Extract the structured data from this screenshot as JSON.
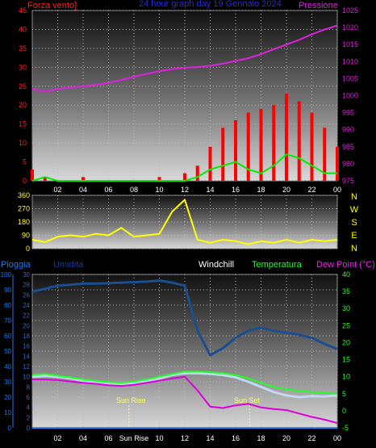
{
  "header": {
    "left_title": "Forza vento]",
    "center_title": "24 hour graph day  19 Gennaio 2024",
    "right_title": "Pressione"
  },
  "bottom_header": {
    "rain_label": "Pioggia",
    "humidity_label": "Umidita",
    "windchill_label": "Windchill",
    "temperature_label": "Temperatura",
    "dewpoint_label": "Dew Point (°C)"
  },
  "hour_ticks": [
    "02",
    "04",
    "06",
    "08",
    "10",
    "12",
    "14",
    "16",
    "18",
    "20",
    "22",
    "00"
  ],
  "hour_ticks_bottom": [
    "02",
    "04",
    "06",
    "Sun Rise",
    "10",
    "12",
    "14",
    "16",
    "18",
    "20",
    "22",
    "00"
  ],
  "annotations": {
    "sun_rise": "Sun Rise",
    "sun_set": "Sun Set"
  },
  "colors": {
    "wind": "#ff0000",
    "gust": "#00ee00",
    "pressure": "#dd22dd",
    "direction": "#ffff00",
    "humidity": "#1a4f8f",
    "windchill": "#c0d8f0",
    "temperature": "#22ff22",
    "dewpoint": "#dd00dd",
    "rain": "#2288ff"
  },
  "chart_data": [
    {
      "type": "line",
      "title": "24 hour graph day  19 Gennaio 2024",
      "ylabel_left": "Forza vento]",
      "ylabel_right": "Pressione",
      "ylim_left": [
        0,
        45
      ],
      "yticks_left": [
        0,
        5,
        10,
        15,
        20,
        25,
        30,
        35,
        40,
        45
      ],
      "ylim_right": [
        975,
        1025
      ],
      "yticks_right": [
        975,
        980,
        985,
        990,
        995,
        1000,
        1005,
        1010,
        1015,
        1020,
        1025
      ],
      "x_hours": [
        0,
        1,
        2,
        3,
        4,
        5,
        6,
        7,
        8,
        9,
        10,
        11,
        12,
        13,
        14,
        15,
        16,
        17,
        18,
        19,
        20,
        21,
        22,
        23,
        24
      ],
      "series": [
        {
          "name": "Pressione",
          "axis": "right",
          "values": [
            1002.0,
            1001.2,
            1002.0,
            1002.4,
            1002.8,
            1003.2,
            1003.8,
            1004.6,
            1005.6,
            1006.4,
            1007.2,
            1007.8,
            1008.2,
            1008.4,
            1008.8,
            1009.4,
            1010.2,
            1011.0,
            1012.2,
            1013.6,
            1015.0,
            1016.4,
            1018.0,
            1019.4,
            1020.6
          ]
        },
        {
          "name": "wind",
          "axis": "left",
          "values": [
            3,
            1,
            0,
            0,
            1,
            0,
            0,
            0,
            0,
            0,
            1,
            0,
            2,
            4,
            9,
            14,
            16,
            18,
            19,
            20,
            23,
            21,
            18,
            14,
            9
          ]
        },
        {
          "name": "gust",
          "axis": "left",
          "values": [
            0,
            1,
            0,
            0,
            0,
            0,
            0,
            0,
            0,
            0,
            0,
            0,
            0,
            1,
            3,
            4,
            5,
            3,
            2,
            4,
            7,
            6,
            4,
            2,
            2
          ]
        }
      ]
    },
    {
      "type": "line",
      "ylabel_right": "N W S E N",
      "ylim": [
        0,
        360
      ],
      "yticks": [
        0,
        90,
        180,
        270,
        360
      ],
      "x_hours": [
        0,
        1,
        2,
        3,
        4,
        5,
        6,
        7,
        8,
        9,
        10,
        11,
        12,
        13,
        14,
        15,
        16,
        17,
        18,
        19,
        20,
        21,
        22,
        23,
        24
      ],
      "series": [
        {
          "name": "direction",
          "values": [
            60,
            45,
            80,
            90,
            80,
            100,
            90,
            140,
            80,
            90,
            100,
            250,
            330,
            60,
            40,
            60,
            50,
            30,
            50,
            40,
            60,
            40,
            60,
            50,
            60
          ]
        }
      ]
    },
    {
      "type": "line",
      "ylim_rain": [
        0,
        100
      ],
      "yticks_rain": [
        0,
        10,
        20,
        30,
        40,
        50,
        60,
        70,
        80,
        90,
        100
      ],
      "ylim_humidity": [
        0,
        30
      ],
      "yticks_humidity": [
        0,
        2,
        4,
        6,
        8,
        10,
        12,
        14,
        16,
        18,
        20,
        22,
        24,
        26,
        28,
        30
      ],
      "ylim_temp": [
        -5,
        40
      ],
      "yticks_temp": [
        -5,
        0,
        5,
        10,
        15,
        20,
        25,
        30,
        35,
        40
      ],
      "x_hours": [
        0,
        1,
        2,
        3,
        4,
        5,
        6,
        7,
        8,
        9,
        10,
        11,
        12,
        13,
        14,
        15,
        16,
        17,
        18,
        19,
        20,
        21,
        22,
        23,
        24
      ],
      "series": [
        {
          "name": "Umidita",
          "axis": "humidity",
          "values": [
            26.6,
            27.2,
            27.8,
            28.0,
            28.2,
            28.2,
            28.3,
            28.4,
            28.5,
            28.6,
            28.8,
            28.4,
            27.8,
            19.0,
            14.2,
            15.6,
            17.6,
            19.0,
            19.6,
            19.0,
            18.6,
            18.2,
            17.6,
            16.4,
            15.4
          ]
        },
        {
          "name": "Windchill",
          "axis": "temp",
          "values": [
            10.0,
            10.2,
            10.0,
            9.5,
            8.8,
            8.5,
            8.0,
            7.8,
            8.2,
            8.8,
            9.5,
            10.5,
            11.0,
            11.0,
            10.8,
            10.5,
            9.8,
            8.5,
            7.0,
            5.5,
            4.5,
            4.0,
            4.3,
            4.2,
            4.5
          ]
        },
        {
          "name": "Temperatura",
          "axis": "temp",
          "values": [
            10.5,
            10.8,
            10.3,
            9.8,
            9.2,
            8.8,
            8.4,
            8.2,
            8.6,
            9.2,
            10.0,
            10.8,
            11.5,
            11.5,
            11.3,
            11.0,
            10.5,
            9.5,
            8.2,
            7.0,
            6.3,
            5.8,
            5.5,
            5.2,
            5.0
          ]
        },
        {
          "name": "Dew Point (°C)",
          "axis": "temp",
          "values": [
            9.2,
            9.2,
            9.0,
            8.6,
            8.2,
            7.9,
            7.5,
            7.3,
            7.6,
            8.2,
            8.8,
            9.5,
            10.0,
            6.0,
            1.2,
            0.8,
            1.6,
            2.0,
            1.0,
            0.5,
            0.2,
            -0.8,
            -1.8,
            -2.6,
            -3.6
          ]
        },
        {
          "name": "Pioggia",
          "axis": "rain",
          "values": [
            0,
            0,
            0,
            0,
            0,
            0,
            0,
            0,
            0,
            0,
            0,
            0,
            0,
            0,
            0,
            0,
            0,
            0,
            0,
            0,
            0,
            0,
            0,
            0,
            0
          ]
        }
      ]
    }
  ]
}
